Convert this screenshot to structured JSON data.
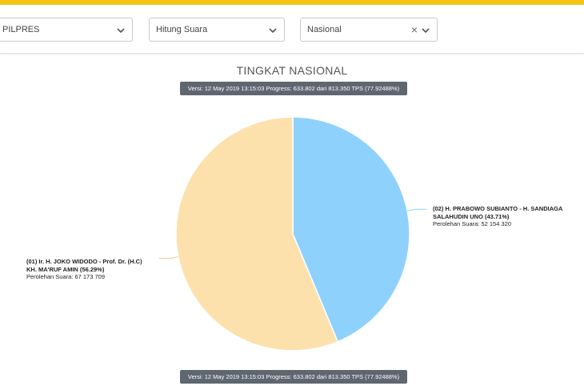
{
  "filters": {
    "election": "PILPRES",
    "count_type": "Hitung Suara",
    "region": "Nasional"
  },
  "icons": {
    "dropdown": "chevron-down-icon",
    "clear": "close-icon"
  },
  "colors": {
    "accent": "#f5c518",
    "badge": "#5e6670"
  },
  "version_top": "Versi: 12 May 2019 13:15:03 Progress: 633.802 dari 813.350 TPS (77.92488%)",
  "version_bottom": "Versi: 12 May 2019 13:15:03 Progress: 633.802 dari 813.350 TPS (77.92488%)",
  "chart_data": {
    "type": "pie",
    "title": "TINGKAT NASIONAL",
    "slices": [
      {
        "id": "02",
        "label_line1": "(02) H. PRABOWO SUBIANTO - H. SANDIAGA",
        "label_line2": "SALAHUDIN UNO (43.71%)",
        "votes_label": "Perolehan Suara: 52 154 320",
        "percent": 43.71,
        "votes": 52154320,
        "color": "#8ed1fc"
      },
      {
        "id": "01",
        "label_line1": "(01) Ir. H. JOKO WIDODO - Prof. Dr. (H.C)",
        "label_line2": "KH. MA'RUF AMIN (56.29%)",
        "votes_label": "Perolehan Suara: 67 173 709",
        "percent": 56.29,
        "votes": 67173709,
        "color": "#fde1ad"
      }
    ]
  }
}
